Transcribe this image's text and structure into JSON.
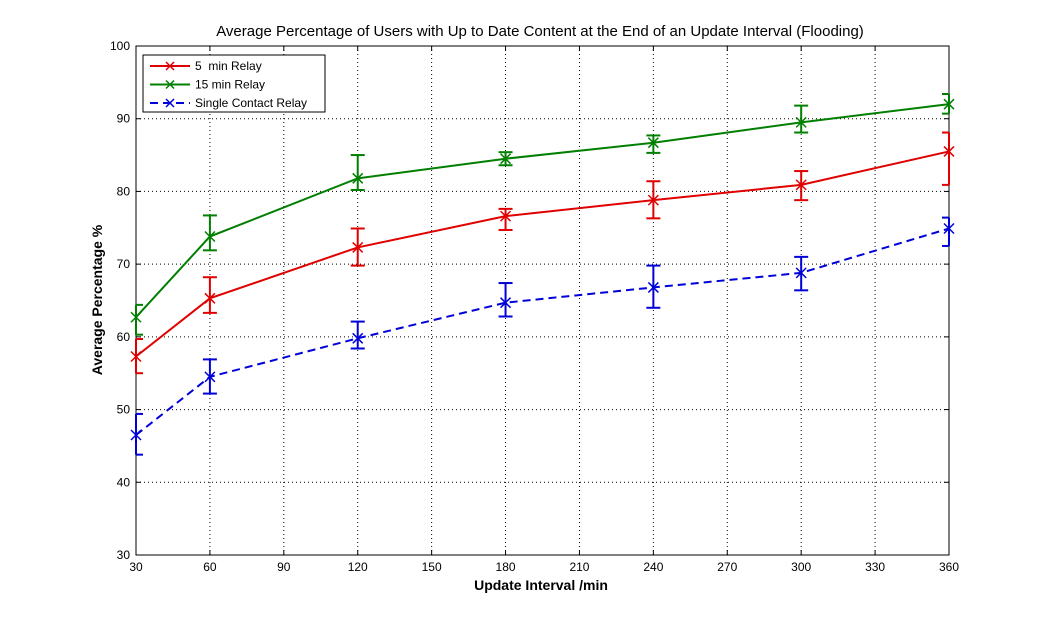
{
  "chart_data": {
    "type": "line",
    "title": "Average Percentage of Users with Up to Date Content at the End of an Update Interval (Flooding)",
    "xlabel": "Update Interval /min",
    "ylabel": "Average Percentage %",
    "xlim": [
      30,
      360
    ],
    "ylim": [
      30,
      100
    ],
    "xticks": [
      30,
      60,
      90,
      120,
      150,
      180,
      210,
      240,
      270,
      300,
      330,
      360
    ],
    "yticks": [
      30,
      40,
      50,
      60,
      70,
      80,
      90,
      100
    ],
    "grid": true,
    "legend_position": "top-left",
    "x": [
      30,
      60,
      120,
      180,
      240,
      300,
      360
    ],
    "series": [
      {
        "name": "5  min Relay",
        "color": "#e00000",
        "dash": "solid",
        "values": [
          57.3,
          65.3,
          72.3,
          76.6,
          78.8,
          80.9,
          85.5
        ],
        "err_low": [
          55.0,
          63.3,
          69.8,
          74.7,
          76.3,
          78.8,
          80.9
        ],
        "err_high": [
          59.7,
          68.2,
          74.9,
          77.6,
          81.4,
          82.8,
          88.1
        ]
      },
      {
        "name": "15 min Relay",
        "color": "#007f00",
        "dash": "solid",
        "values": [
          62.7,
          73.8,
          81.8,
          84.5,
          86.7,
          89.5,
          92.0
        ],
        "err_low": [
          60.3,
          71.9,
          80.2,
          83.6,
          85.3,
          88.1,
          90.7
        ],
        "err_high": [
          64.4,
          76.7,
          85.0,
          85.4,
          87.7,
          91.8,
          93.4
        ]
      },
      {
        "name": "Single Contact Relay",
        "color": "#0000d8",
        "dash": "dashed",
        "values": [
          46.5,
          54.5,
          59.8,
          64.7,
          66.8,
          68.8,
          74.9
        ],
        "err_low": [
          43.8,
          52.2,
          58.4,
          62.8,
          64.0,
          66.4,
          72.5
        ],
        "err_high": [
          49.4,
          56.9,
          62.1,
          67.4,
          69.8,
          71.0,
          76.4
        ]
      }
    ]
  }
}
